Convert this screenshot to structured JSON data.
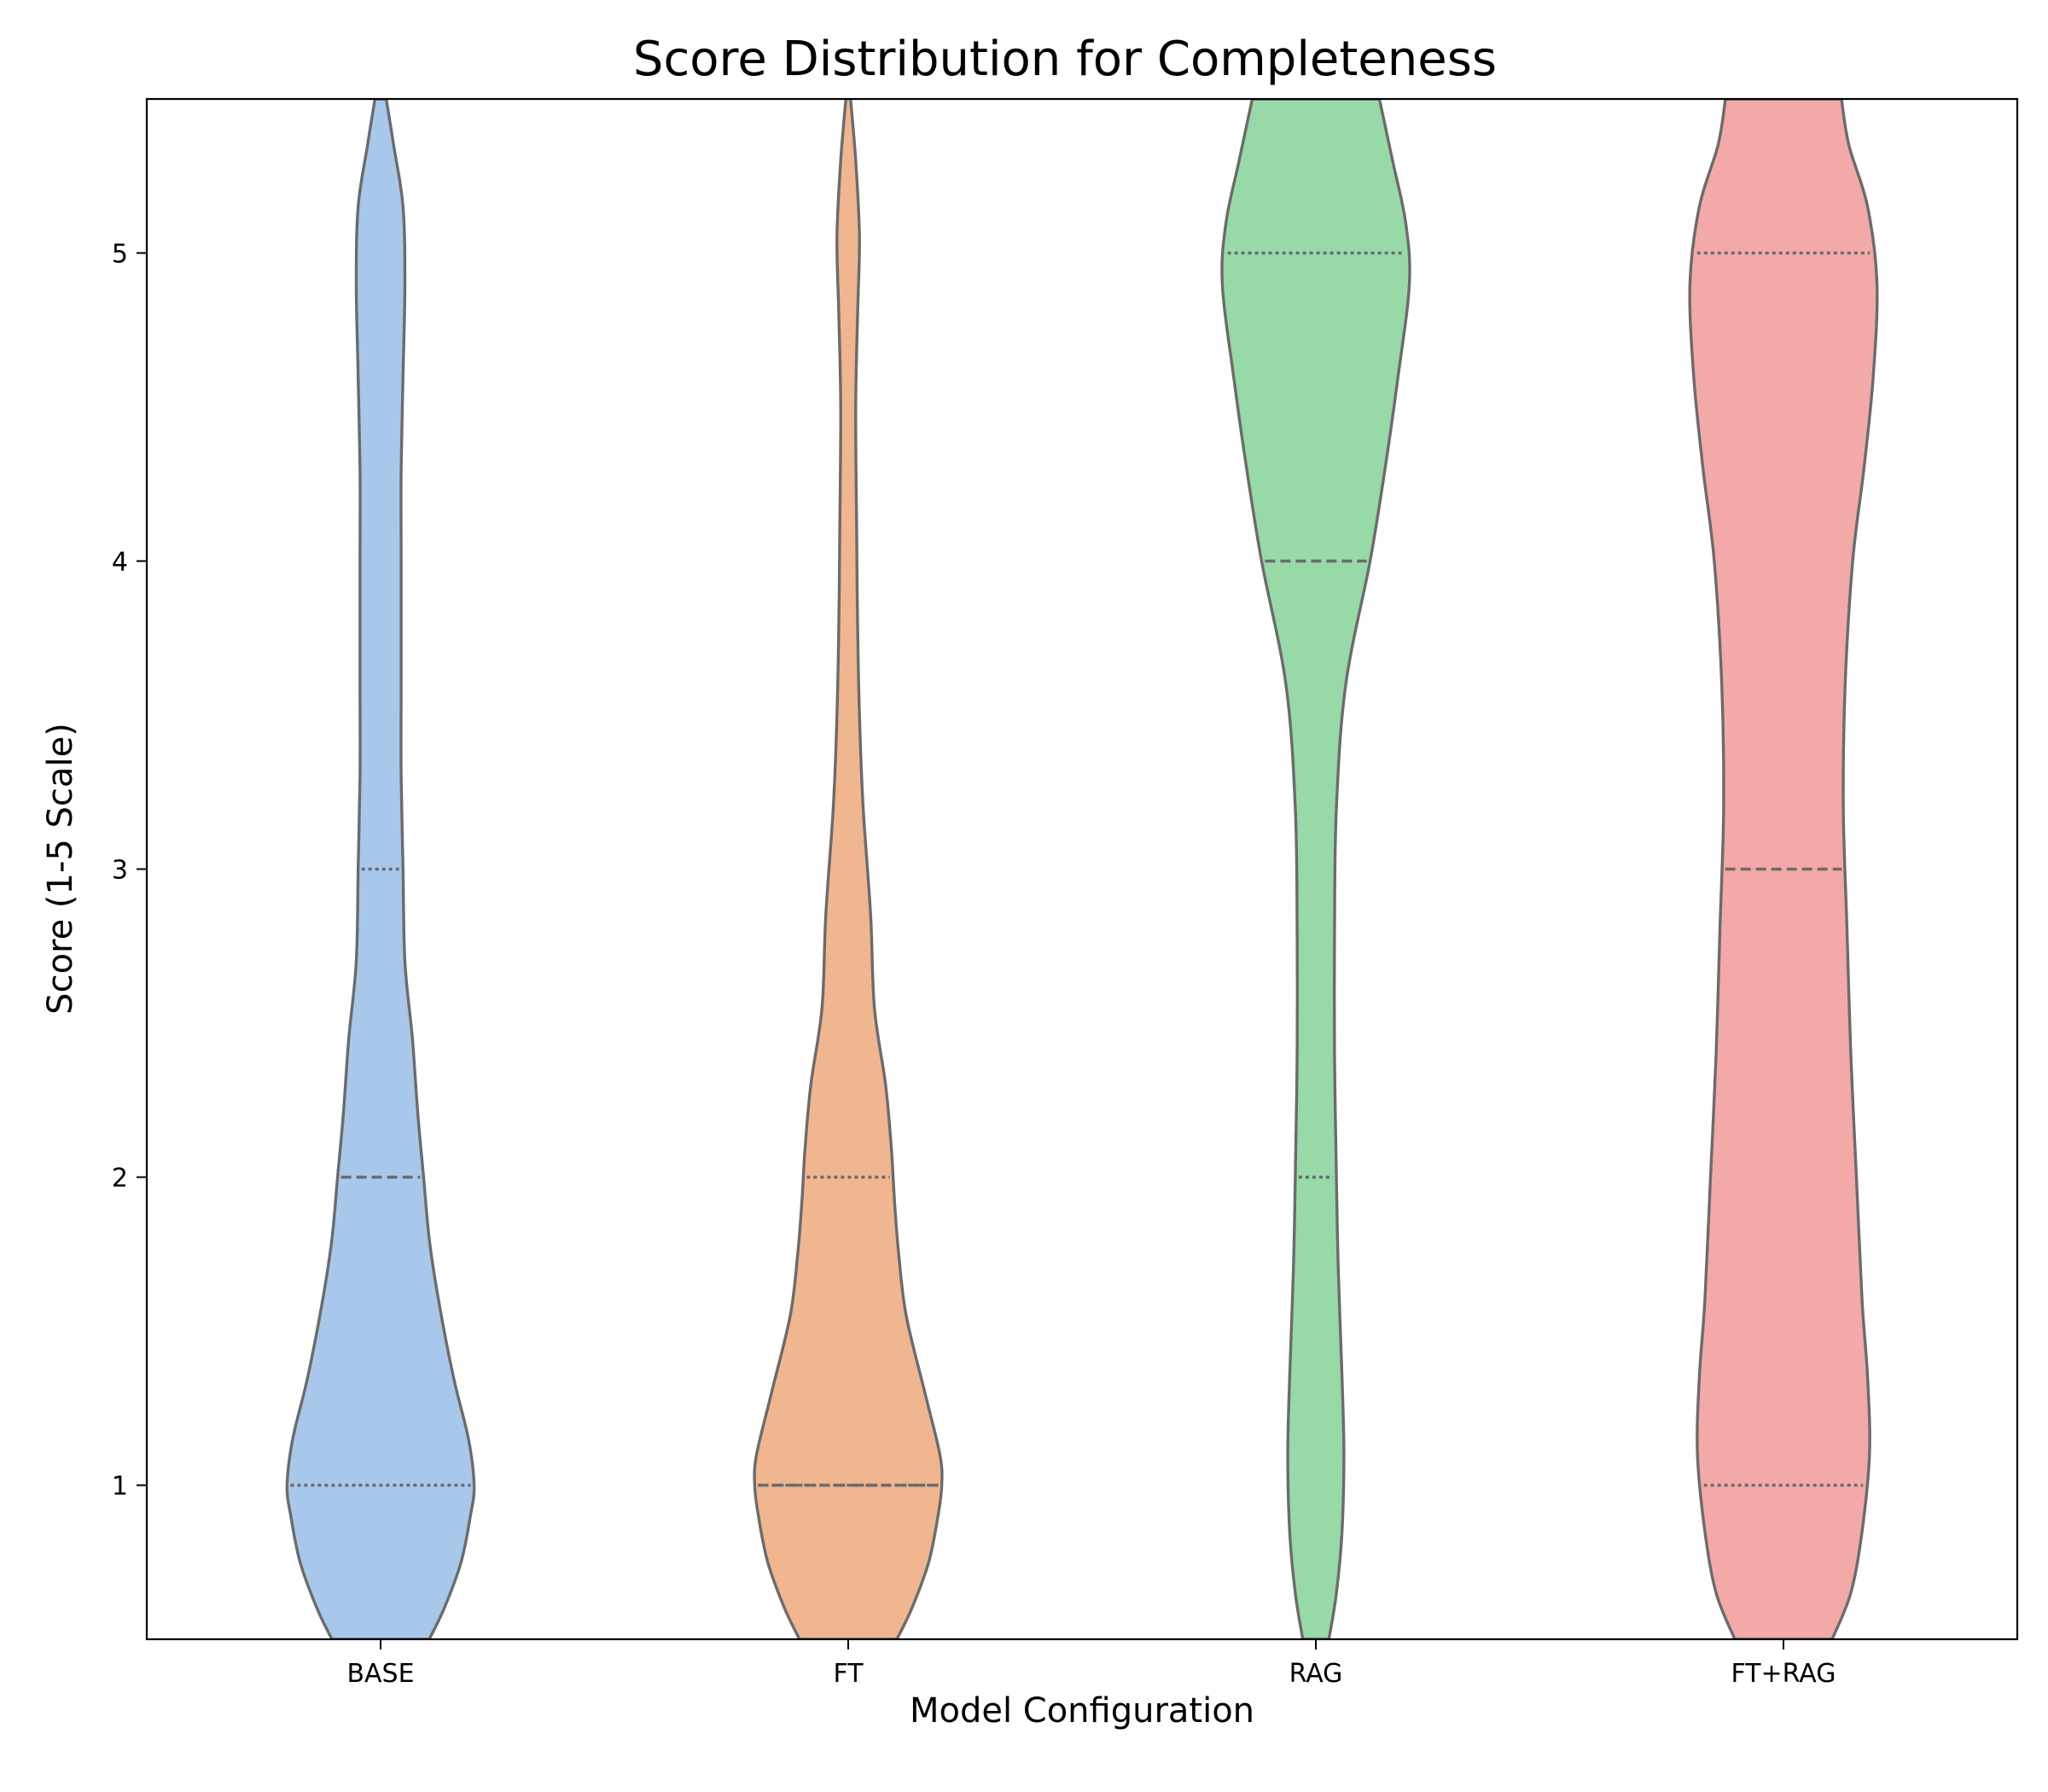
{
  "chart_data": {
    "type": "violin",
    "title": "Score Distribution for Completeness",
    "xlabel": "Model Configuration",
    "ylabel": "Score (1-5 Scale)",
    "categories": [
      "BASE",
      "FT",
      "RAG",
      "FT+RAG"
    ],
    "ylim": [
      0.5,
      5.5
    ],
    "yticks": [
      1,
      2,
      3,
      4,
      5
    ],
    "grid": false,
    "legend": "none",
    "colors": {
      "BASE": "#a8c8eb",
      "FT": "#f0b690",
      "RAG": "#98d9a8",
      "FT+RAG": "#f2a9a8",
      "outline": "#6b6b6b"
    },
    "series": [
      {
        "category": "BASE",
        "quartiles": {
          "q1": 1,
          "median": 2,
          "q3": 3
        },
        "density_profile": [
          [
            0.5,
            0.26
          ],
          [
            0.6,
            0.34
          ],
          [
            0.75,
            0.43
          ],
          [
            0.9,
            0.48
          ],
          [
            1.0,
            0.5
          ],
          [
            1.15,
            0.47
          ],
          [
            1.35,
            0.39
          ],
          [
            1.6,
            0.31
          ],
          [
            1.8,
            0.26
          ],
          [
            2.0,
            0.23
          ],
          [
            2.2,
            0.2
          ],
          [
            2.45,
            0.17
          ],
          [
            2.7,
            0.13
          ],
          [
            3.0,
            0.12
          ],
          [
            3.3,
            0.11
          ],
          [
            3.6,
            0.11
          ],
          [
            4.0,
            0.11
          ],
          [
            4.3,
            0.11
          ],
          [
            4.6,
            0.12
          ],
          [
            4.9,
            0.13
          ],
          [
            5.15,
            0.12
          ],
          [
            5.35,
            0.07
          ],
          [
            5.5,
            0.03
          ]
        ]
      },
      {
        "category": "FT",
        "quartiles": {
          "q1": 1,
          "median": 1,
          "q3": 2
        },
        "density_profile": [
          [
            0.5,
            0.26
          ],
          [
            0.6,
            0.34
          ],
          [
            0.75,
            0.43
          ],
          [
            0.9,
            0.48
          ],
          [
            1.0,
            0.5
          ],
          [
            1.1,
            0.49
          ],
          [
            1.3,
            0.41
          ],
          [
            1.55,
            0.31
          ],
          [
            1.75,
            0.27
          ],
          [
            1.9,
            0.25
          ],
          [
            2.0,
            0.24
          ],
          [
            2.1,
            0.23
          ],
          [
            2.3,
            0.2
          ],
          [
            2.55,
            0.14
          ],
          [
            2.85,
            0.12
          ],
          [
            3.2,
            0.08
          ],
          [
            3.5,
            0.06
          ],
          [
            3.8,
            0.05
          ],
          [
            4.1,
            0.045
          ],
          [
            4.5,
            0.04
          ],
          [
            4.8,
            0.05
          ],
          [
            5.05,
            0.06
          ],
          [
            5.3,
            0.04
          ],
          [
            5.55,
            0.005
          ]
        ]
      },
      {
        "category": "RAG",
        "quartiles": {
          "q1": 2,
          "median": 4,
          "q3": 5
        },
        "density_profile": [
          [
            0.5,
            0.07
          ],
          [
            0.65,
            0.11
          ],
          [
            0.85,
            0.14
          ],
          [
            1.1,
            0.15
          ],
          [
            1.35,
            0.14
          ],
          [
            1.7,
            0.12
          ],
          [
            2.0,
            0.11
          ],
          [
            2.4,
            0.1
          ],
          [
            2.8,
            0.1
          ],
          [
            3.2,
            0.11
          ],
          [
            3.6,
            0.16
          ],
          [
            4.0,
            0.29
          ],
          [
            4.3,
            0.37
          ],
          [
            4.6,
            0.44
          ],
          [
            4.9,
            0.5
          ],
          [
            5.1,
            0.48
          ],
          [
            5.3,
            0.41
          ],
          [
            5.5,
            0.34
          ]
        ]
      },
      {
        "category": "FT+RAG",
        "quartiles": {
          "q1": 1,
          "median": 3,
          "q3": 5
        },
        "density_profile": [
          [
            0.5,
            0.26
          ],
          [
            0.65,
            0.36
          ],
          [
            0.85,
            0.42
          ],
          [
            1.1,
            0.46
          ],
          [
            1.35,
            0.45
          ],
          [
            1.6,
            0.42
          ],
          [
            2.0,
            0.39
          ],
          [
            2.4,
            0.36
          ],
          [
            2.8,
            0.34
          ],
          [
            3.2,
            0.32
          ],
          [
            3.6,
            0.33
          ],
          [
            4.0,
            0.37
          ],
          [
            4.3,
            0.43
          ],
          [
            4.6,
            0.48
          ],
          [
            4.9,
            0.5
          ],
          [
            5.15,
            0.45
          ],
          [
            5.35,
            0.35
          ],
          [
            5.5,
            0.31
          ]
        ]
      }
    ]
  }
}
